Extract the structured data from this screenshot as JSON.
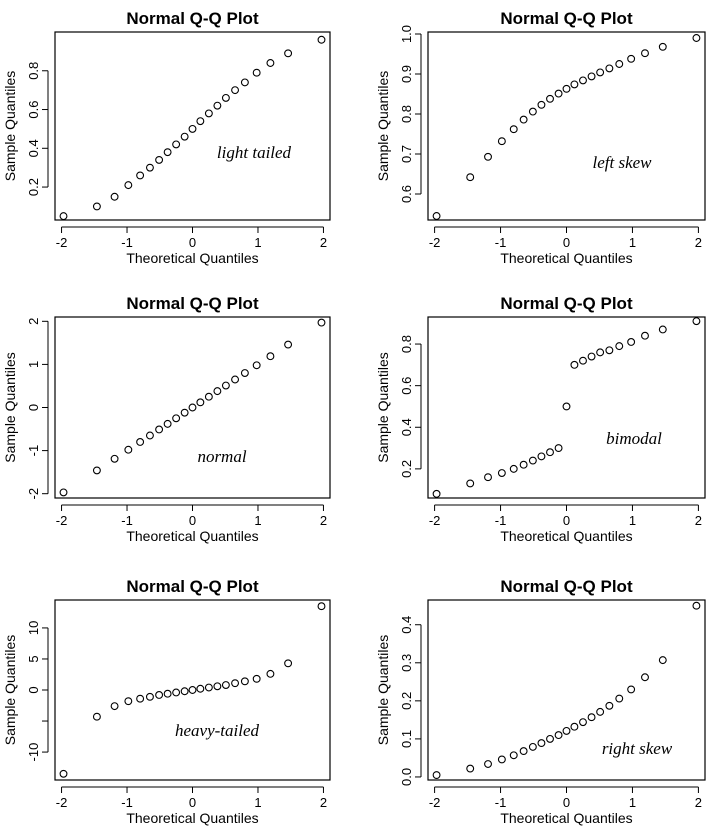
{
  "chart_data": [
    {
      "type": "scatter",
      "title": "Normal Q-Q Plot",
      "xlabel": "Theoretical Quantiles",
      "ylabel": "Sample Quantiles",
      "annotation": "light tailed",
      "xlim": [
        -2.1,
        2.1
      ],
      "ylim": [
        0.03,
        1.0
      ],
      "xticks": [
        -2,
        -1,
        0,
        1,
        2
      ],
      "yticks": [
        0.2,
        0.4,
        0.6,
        0.8
      ],
      "yticklabels": [
        "0.2",
        "0.4",
        "0.6",
        "0.8"
      ],
      "x": [
        -1.97,
        -1.46,
        -1.19,
        -0.98,
        -0.8,
        -0.65,
        -0.51,
        -0.38,
        -0.25,
        -0.12,
        0.0,
        0.12,
        0.25,
        0.38,
        0.51,
        0.65,
        0.8,
        0.98,
        1.19,
        1.46,
        1.97
      ],
      "y": [
        0.05,
        0.1,
        0.15,
        0.21,
        0.26,
        0.3,
        0.34,
        0.38,
        0.42,
        0.46,
        0.5,
        0.54,
        0.58,
        0.62,
        0.66,
        0.7,
        0.74,
        0.79,
        0.84,
        0.89,
        0.96
      ]
    },
    {
      "type": "scatter",
      "title": "Normal Q-Q Plot",
      "xlabel": "Theoretical Quantiles",
      "ylabel": "Sample Quantiles",
      "annotation": "left skew",
      "xlim": [
        -2.1,
        2.1
      ],
      "ylim": [
        0.535,
        1.005
      ],
      "xticks": [
        -2,
        -1,
        0,
        1,
        2
      ],
      "yticks": [
        0.6,
        0.7,
        0.8,
        0.9,
        1.0
      ],
      "yticklabels": [
        "0.6",
        "0.7",
        "0.8",
        "0.9",
        "1.0"
      ],
      "x": [
        -1.97,
        -1.46,
        -1.19,
        -0.98,
        -0.8,
        -0.65,
        -0.51,
        -0.38,
        -0.25,
        -0.12,
        0.0,
        0.12,
        0.25,
        0.38,
        0.51,
        0.65,
        0.8,
        0.98,
        1.19,
        1.46,
        1.97
      ],
      "y": [
        0.545,
        0.642,
        0.693,
        0.732,
        0.762,
        0.786,
        0.806,
        0.823,
        0.838,
        0.851,
        0.863,
        0.874,
        0.884,
        0.894,
        0.904,
        0.914,
        0.925,
        0.938,
        0.952,
        0.968,
        0.99
      ]
    },
    {
      "type": "scatter",
      "title": "Normal Q-Q Plot",
      "xlabel": "Theoretical Quantiles",
      "ylabel": "Sample Quantiles",
      "annotation": "normal",
      "xlim": [
        -2.1,
        2.1
      ],
      "ylim": [
        -2.1,
        2.1
      ],
      "xticks": [
        -2,
        -1,
        0,
        1,
        2
      ],
      "yticks": [
        -2,
        -1,
        0,
        1,
        2
      ],
      "yticklabels": [
        "-2",
        "-1",
        "0",
        "1",
        "2"
      ],
      "x": [
        -1.97,
        -1.46,
        -1.19,
        -0.98,
        -0.8,
        -0.65,
        -0.51,
        -0.38,
        -0.25,
        -0.12,
        0.0,
        0.12,
        0.25,
        0.38,
        0.51,
        0.65,
        0.8,
        0.98,
        1.19,
        1.46,
        1.97
      ],
      "y": [
        -1.97,
        -1.46,
        -1.19,
        -0.98,
        -0.8,
        -0.65,
        -0.51,
        -0.38,
        -0.25,
        -0.12,
        0.0,
        0.12,
        0.25,
        0.38,
        0.51,
        0.65,
        0.8,
        0.98,
        1.19,
        1.46,
        1.97
      ]
    },
    {
      "type": "scatter",
      "title": "Normal Q-Q Plot",
      "xlabel": "Theoretical Quantiles",
      "ylabel": "Sample Quantiles",
      "annotation": "bimodal",
      "xlim": [
        -2.1,
        2.1
      ],
      "ylim": [
        0.06,
        0.93
      ],
      "xticks": [
        -2,
        -1,
        0,
        1,
        2
      ],
      "yticks": [
        0.2,
        0.4,
        0.6,
        0.8
      ],
      "yticklabels": [
        "0.2",
        "0.4",
        "0.6",
        "0.8"
      ],
      "x": [
        -1.97,
        -1.46,
        -1.19,
        -0.98,
        -0.8,
        -0.65,
        -0.51,
        -0.38,
        -0.25,
        -0.12,
        0.0,
        0.12,
        0.25,
        0.38,
        0.51,
        0.65,
        0.8,
        0.98,
        1.19,
        1.46,
        1.97
      ],
      "y": [
        0.08,
        0.13,
        0.16,
        0.18,
        0.2,
        0.22,
        0.24,
        0.26,
        0.28,
        0.3,
        0.5,
        0.7,
        0.72,
        0.74,
        0.76,
        0.77,
        0.79,
        0.81,
        0.84,
        0.87,
        0.91
      ]
    },
    {
      "type": "scatter",
      "title": "Normal Q-Q Plot",
      "xlabel": "Theoretical Quantiles",
      "ylabel": "Sample Quantiles",
      "annotation": "heavy-tailed",
      "xlim": [
        -2.1,
        2.1
      ],
      "ylim": [
        -14.5,
        14.5
      ],
      "xticks": [
        -2,
        -1,
        0,
        1,
        2
      ],
      "yticks": [
        -10,
        -5,
        0,
        5,
        10
      ],
      "yticklabels": [
        "-10",
        "",
        "0",
        "5",
        "10"
      ],
      "x": [
        -1.97,
        -1.46,
        -1.19,
        -0.98,
        -0.8,
        -0.65,
        -0.51,
        -0.38,
        -0.25,
        -0.12,
        0.0,
        0.12,
        0.25,
        0.38,
        0.51,
        0.65,
        0.8,
        0.98,
        1.19,
        1.46,
        1.97
      ],
      "y": [
        -13.5,
        -4.3,
        -2.6,
        -1.8,
        -1.4,
        -1.1,
        -0.8,
        -0.6,
        -0.4,
        -0.2,
        0.0,
        0.2,
        0.4,
        0.6,
        0.8,
        1.1,
        1.4,
        1.8,
        2.6,
        4.3,
        13.5
      ]
    },
    {
      "type": "scatter",
      "title": "Normal Q-Q Plot",
      "xlabel": "Theoretical Quantiles",
      "ylabel": "Sample Quantiles",
      "annotation": "right skew",
      "xlim": [
        -2.1,
        2.1
      ],
      "ylim": [
        -0.008,
        0.465
      ],
      "xticks": [
        -2,
        -1,
        0,
        1,
        2
      ],
      "yticks": [
        0.0,
        0.1,
        0.2,
        0.3,
        0.4
      ],
      "yticklabels": [
        "0.0",
        "0.1",
        "0.2",
        "0.3",
        "0.4"
      ],
      "x": [
        -1.97,
        -1.46,
        -1.19,
        -0.98,
        -0.8,
        -0.65,
        -0.51,
        -0.38,
        -0.25,
        -0.12,
        0.0,
        0.12,
        0.25,
        0.38,
        0.51,
        0.65,
        0.8,
        0.98,
        1.19,
        1.46,
        1.97
      ],
      "y": [
        0.005,
        0.022,
        0.034,
        0.046,
        0.057,
        0.068,
        0.079,
        0.089,
        0.1,
        0.11,
        0.121,
        0.132,
        0.144,
        0.157,
        0.171,
        0.187,
        0.206,
        0.23,
        0.262,
        0.307,
        0.45
      ]
    }
  ]
}
